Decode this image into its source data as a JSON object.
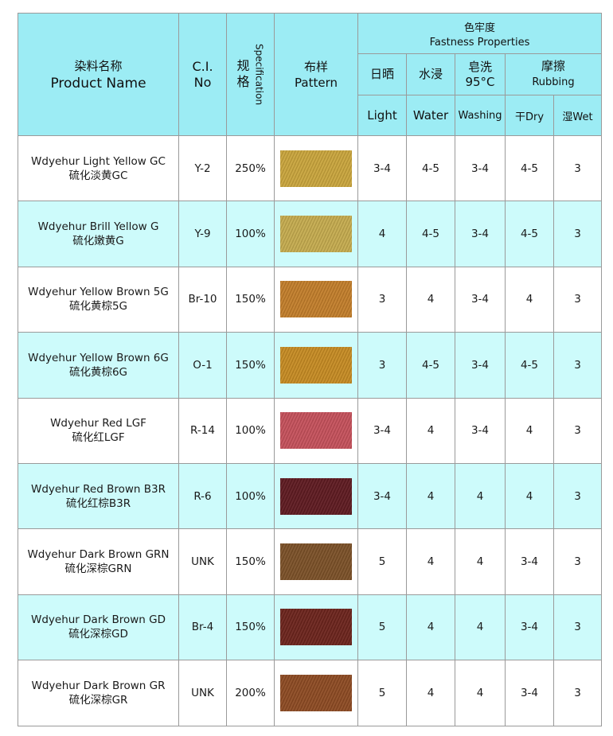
{
  "header": {
    "product_name_zh": "染料名称",
    "product_name_en": "Product Name",
    "ci_line1": "C.I.",
    "ci_line2": "No",
    "spec_zh": "规格",
    "spec_en": "Specification",
    "pattern_zh": "布样",
    "pattern_en": "Pattern",
    "fastness_zh": "色牢度",
    "fastness_en": "Fastness Properties",
    "light_zh": "日晒",
    "water_zh": "水浸",
    "washing_zh": "皂洗",
    "washing_temp": "95°C",
    "rubbing_zh": "摩擦",
    "rubbing_en": "Rubbing",
    "light_en": "Light",
    "water_en": "Water",
    "washing_en": "Washing",
    "dry": "干Dry",
    "wet": "湿Wet"
  },
  "rows": [
    {
      "name_en": "Wdyehur Light Yellow GC",
      "name_zh": "硫化淡黄GC",
      "ci": "Y-2",
      "spec": "250%",
      "color": "#c8a43c",
      "light": "3-4",
      "water": "4-5",
      "washing": "3-4",
      "dry": "4-5",
      "wet": "3"
    },
    {
      "name_en": "Wdyehur Brill Yellow G",
      "name_zh": "硫化嫩黄G",
      "ci": "Y-9",
      "spec": "100%",
      "color": "#c4aa4e",
      "light": "4",
      "water": "4-5",
      "washing": "3-4",
      "dry": "4-5",
      "wet": "3"
    },
    {
      "name_en": "Wdyehur Yellow Brown 5G",
      "name_zh": "硫化黄棕5G",
      "ci": "Br-10",
      "spec": "150%",
      "color": "#c17d2a",
      "light": "3",
      "water": "4",
      "washing": "3-4",
      "dry": "4",
      "wet": "3"
    },
    {
      "name_en": "Wdyehur Yellow Brown 6G",
      "name_zh": "硫化黄棕6G",
      "ci": "O-1",
      "spec": "150%",
      "color": "#c58a22",
      "light": "3",
      "water": "4-5",
      "washing": "3-4",
      "dry": "4-5",
      "wet": "3"
    },
    {
      "name_en": "Wdyehur Red LGF",
      "name_zh": "硫化红LGF",
      "ci": "R-14",
      "spec": "100%",
      "color": "#c4505a",
      "light": "3-4",
      "water": "4",
      "washing": "3-4",
      "dry": "4",
      "wet": "3"
    },
    {
      "name_en": "Wdyehur Red Brown B3R",
      "name_zh": "硫化红棕B3R",
      "ci": "R-6",
      "spec": "100%",
      "color": "#5e1a20",
      "light": "3-4",
      "water": "4",
      "washing": "4",
      "dry": "4",
      "wet": "3"
    },
    {
      "name_en": "Wdyehur Dark Brown GRN",
      "name_zh": "硫化深棕GRN",
      "ci": "UNK",
      "spec": "150%",
      "color": "#7a5027",
      "light": "5",
      "water": "4",
      "washing": "4",
      "dry": "3-4",
      "wet": "3"
    },
    {
      "name_en": "Wdyehur Dark Brown GD",
      "name_zh": "硫化深棕GD",
      "ci": "Br-4",
      "spec": "150%",
      "color": "#6b231c",
      "light": "5",
      "water": "4",
      "washing": "4",
      "dry": "3-4",
      "wet": "3"
    },
    {
      "name_en": "Wdyehur Dark Brown GR",
      "name_zh": "硫化深棕GR",
      "ci": "UNK",
      "spec": "200%",
      "color": "#8c4a22",
      "light": "5",
      "water": "4",
      "washing": "4",
      "dry": "3-4",
      "wet": "3"
    }
  ]
}
